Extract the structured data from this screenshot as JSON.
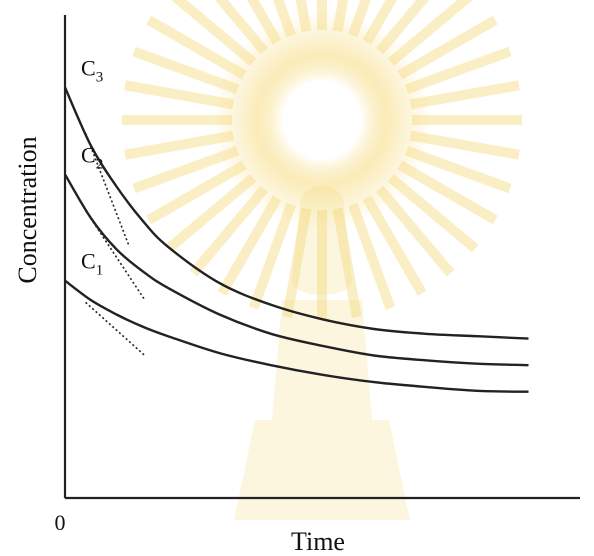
{
  "chart_data": {
    "type": "line",
    "title": "",
    "xlabel": "Time",
    "ylabel": "Concentration",
    "x_tick_labels": [
      "0"
    ],
    "y_tick_labels": [],
    "xlim": [
      0,
      10
    ],
    "ylim": [
      0,
      10
    ],
    "grid": false,
    "legend": "none",
    "series_label_style": "inline-left",
    "series": [
      {
        "name": "C3",
        "label_main": "C",
        "label_sub": "3",
        "x": [
          0,
          0.5,
          1,
          1.5,
          2,
          3,
          4,
          5,
          6,
          7,
          8,
          9
        ],
        "y": [
          8.5,
          7.3,
          6.45,
          5.75,
          5.2,
          4.45,
          4.0,
          3.7,
          3.5,
          3.4,
          3.35,
          3.3
        ],
        "tangent": {
          "x": [
            0.4,
            1.25
          ],
          "y": [
            7.55,
            5.2
          ]
        }
      },
      {
        "name": "C2",
        "label_main": "C",
        "label_sub": "2",
        "x": [
          0,
          0.5,
          1,
          1.5,
          2,
          3,
          4,
          5,
          6,
          7,
          8,
          9
        ],
        "y": [
          6.7,
          5.8,
          5.15,
          4.7,
          4.35,
          3.8,
          3.4,
          3.15,
          2.95,
          2.85,
          2.78,
          2.75
        ],
        "tangent": {
          "x": [
            0.4,
            1.55
          ],
          "y": [
            5.95,
            4.1
          ]
        }
      },
      {
        "name": "C1",
        "label_main": "C",
        "label_sub": "1",
        "x": [
          0,
          0.5,
          1,
          1.5,
          2,
          3,
          4,
          5,
          6,
          7,
          8,
          9
        ],
        "y": [
          4.5,
          4.1,
          3.8,
          3.55,
          3.35,
          3.0,
          2.75,
          2.55,
          2.4,
          2.3,
          2.22,
          2.2
        ],
        "tangent": {
          "x": [
            0.4,
            1.55
          ],
          "y": [
            4.05,
            2.95
          ]
        }
      }
    ],
    "colors": {
      "line": "#222222",
      "watermark": "#f3cf5a"
    }
  }
}
